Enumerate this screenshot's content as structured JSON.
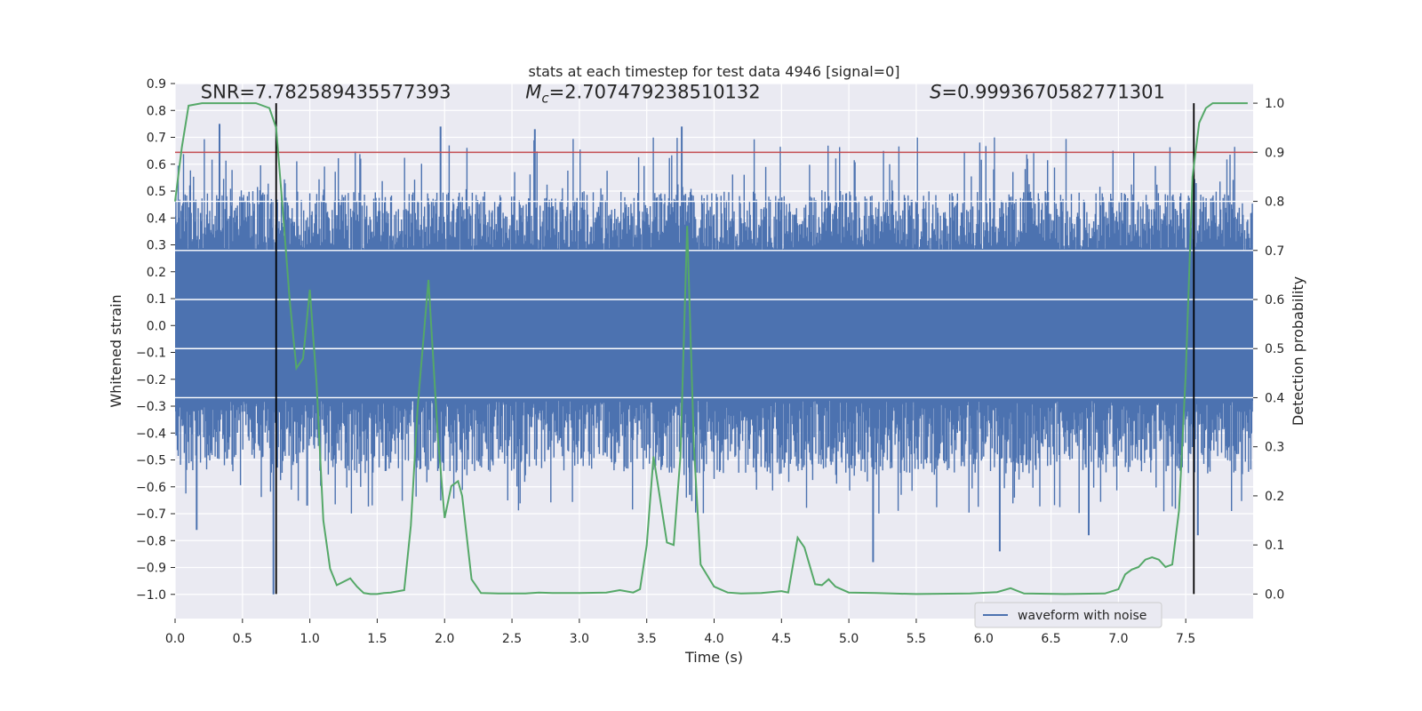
{
  "chart_data": {
    "type": "line",
    "title": "stats at each timestep for test data 4946 [signal=0]",
    "xlabel": "Time (s)",
    "ylabel": "Whitened strain",
    "y2label": "Detection probability",
    "xlim": [
      0,
      8.0
    ],
    "ylim": [
      -1.09,
      0.9
    ],
    "y2lim": [
      -0.05,
      1.04
    ],
    "xticks": [
      "0.0",
      "0.5",
      "1.0",
      "1.5",
      "2.0",
      "2.5",
      "3.0",
      "3.5",
      "4.0",
      "4.5",
      "5.0",
      "5.5",
      "6.0",
      "6.5",
      "7.0",
      "7.5"
    ],
    "yticks": [
      "0.9",
      "0.8",
      "0.7",
      "0.6",
      "0.5",
      "0.4",
      "0.3",
      "0.2",
      "0.1",
      "0.0",
      "−0.1",
      "−0.2",
      "−0.3",
      "−0.4",
      "−0.5",
      "−0.6",
      "−0.7",
      "−0.8",
      "−0.9",
      "−1.0"
    ],
    "y2ticks": [
      "1.0",
      "0.9",
      "0.8",
      "0.7",
      "0.6",
      "0.5",
      "0.4",
      "0.3",
      "0.2",
      "0.1",
      "0.0"
    ],
    "annotations": {
      "snr": "SNR=7.782589435577393",
      "mc_symbol": "M",
      "mc_sub": "c",
      "mc_value": "=2.707479238510132",
      "s_symbol": "S",
      "s_value": "=0.9993670582771301"
    },
    "threshold": {
      "value": 0.9,
      "axis": "y2",
      "color": "#c44e52"
    },
    "vlines": [
      0.75,
      7.56
    ],
    "series": [
      {
        "name": "waveform with noise",
        "axis": "y",
        "color": "#4c72b0",
        "band_core": [
          -0.28,
          0.28
        ],
        "band_envelope": [
          -0.55,
          0.5
        ],
        "notable_spikes": [
          {
            "x": 0.16,
            "y": -0.76
          },
          {
            "x": 0.33,
            "y": 0.75
          },
          {
            "x": 0.73,
            "y": -1.0
          },
          {
            "x": 0.98,
            "y": -0.67
          },
          {
            "x": 1.97,
            "y": 0.74
          },
          {
            "x": 2.67,
            "y": 0.73
          },
          {
            "x": 3.76,
            "y": 0.74
          },
          {
            "x": 3.82,
            "y": -0.63
          },
          {
            "x": 5.18,
            "y": -0.88
          },
          {
            "x": 6.12,
            "y": -0.84
          },
          {
            "x": 6.78,
            "y": -0.78
          },
          {
            "x": 7.59,
            "y": -0.78
          }
        ]
      },
      {
        "axis": "y2",
        "color": "#55a868",
        "x": [
          0.0,
          0.05,
          0.1,
          0.2,
          0.3,
          0.4,
          0.5,
          0.6,
          0.7,
          0.75,
          0.8,
          0.85,
          0.9,
          0.95,
          1.0,
          1.05,
          1.1,
          1.15,
          1.2,
          1.3,
          1.35,
          1.4,
          1.45,
          1.5,
          1.55,
          1.6,
          1.7,
          1.75,
          1.8,
          1.88,
          1.95,
          2.0,
          2.05,
          2.1,
          2.13,
          2.2,
          2.27,
          2.4,
          2.6,
          2.7,
          2.8,
          3.0,
          3.2,
          3.3,
          3.4,
          3.45,
          3.5,
          3.55,
          3.65,
          3.7,
          3.75,
          3.8,
          3.85,
          3.9,
          4.0,
          4.1,
          4.2,
          4.35,
          4.5,
          4.55,
          4.62,
          4.67,
          4.75,
          4.8,
          4.85,
          4.9,
          5.0,
          5.2,
          5.5,
          5.9,
          6.1,
          6.2,
          6.3,
          6.6,
          6.9,
          7.0,
          7.05,
          7.1,
          7.15,
          7.2,
          7.25,
          7.3,
          7.35,
          7.4,
          7.45,
          7.5,
          7.55,
          7.6,
          7.65,
          7.7,
          7.75,
          7.8,
          7.9,
          7.96
        ],
        "y": [
          0.8,
          0.91,
          0.995,
          1.0,
          1.0,
          1.0,
          1.0,
          1.0,
          0.99,
          0.95,
          0.78,
          0.6,
          0.46,
          0.48,
          0.62,
          0.43,
          0.15,
          0.052,
          0.018,
          0.032,
          0.015,
          0.002,
          0.0,
          0.0,
          0.002,
          0.003,
          0.008,
          0.14,
          0.38,
          0.64,
          0.32,
          0.155,
          0.22,
          0.23,
          0.2,
          0.03,
          0.002,
          0.001,
          0.001,
          0.003,
          0.002,
          0.002,
          0.003,
          0.008,
          0.003,
          0.01,
          0.1,
          0.28,
          0.105,
          0.1,
          0.28,
          0.75,
          0.3,
          0.06,
          0.015,
          0.003,
          0.001,
          0.002,
          0.006,
          0.003,
          0.115,
          0.095,
          0.02,
          0.018,
          0.03,
          0.015,
          0.003,
          0.002,
          0.0,
          0.001,
          0.004,
          0.012,
          0.001,
          0.0,
          0.001,
          0.01,
          0.04,
          0.05,
          0.055,
          0.07,
          0.075,
          0.07,
          0.055,
          0.06,
          0.17,
          0.45,
          0.85,
          0.96,
          0.99,
          1.0,
          1.0,
          1.0,
          1.0,
          1.0
        ]
      }
    ],
    "legend": {
      "entries": [
        "waveform with noise"
      ],
      "placement": "lower-right"
    },
    "grid": true
  }
}
